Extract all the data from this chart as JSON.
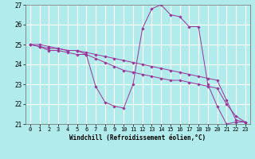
{
  "xlabel": "Windchill (Refroidissement éolien,°C)",
  "bg_color": "#b2ebeb",
  "grid_color": "#ffffff",
  "line_color": "#993399",
  "xlim": [
    -0.5,
    23.5
  ],
  "ylim": [
    21.0,
    27.0
  ],
  "yticks": [
    21,
    22,
    23,
    24,
    25,
    26,
    27
  ],
  "xticks": [
    0,
    1,
    2,
    3,
    4,
    5,
    6,
    7,
    8,
    9,
    10,
    11,
    12,
    13,
    14,
    15,
    16,
    17,
    18,
    19,
    20,
    21,
    22,
    23
  ],
  "series": [
    {
      "x": [
        0,
        1,
        2,
        3,
        4,
        5,
        6,
        7,
        8,
        9,
        10,
        11,
        12,
        13,
        14,
        15,
        16,
        17,
        18,
        19,
        20,
        21,
        22,
        23
      ],
      "y": [
        25.0,
        24.9,
        24.7,
        24.7,
        24.6,
        24.5,
        24.5,
        22.9,
        22.1,
        21.9,
        21.8,
        23.0,
        25.8,
        26.8,
        27.0,
        26.5,
        26.4,
        25.9,
        25.9,
        23.0,
        21.9,
        21.0,
        21.1,
        21.1
      ]
    },
    {
      "x": [
        0,
        1,
        2,
        3,
        4,
        5,
        6,
        7,
        8,
        9,
        10,
        11,
        12,
        13,
        14,
        15,
        16,
        17,
        18,
        19,
        20,
        21,
        22,
        23
      ],
      "y": [
        25.0,
        24.9,
        24.8,
        24.8,
        24.7,
        24.7,
        24.5,
        24.3,
        24.1,
        23.9,
        23.7,
        23.6,
        23.5,
        23.4,
        23.3,
        23.2,
        23.2,
        23.1,
        23.0,
        22.9,
        22.8,
        22.0,
        21.4,
        21.1
      ]
    },
    {
      "x": [
        0,
        1,
        2,
        3,
        4,
        5,
        6,
        7,
        8,
        9,
        10,
        11,
        12,
        13,
        14,
        15,
        16,
        17,
        18,
        19,
        20,
        21,
        22,
        23
      ],
      "y": [
        25.0,
        25.0,
        24.9,
        24.8,
        24.7,
        24.7,
        24.6,
        24.5,
        24.4,
        24.3,
        24.2,
        24.1,
        24.0,
        23.9,
        23.8,
        23.7,
        23.6,
        23.5,
        23.4,
        23.3,
        23.2,
        22.2,
        21.2,
        21.1
      ]
    }
  ]
}
